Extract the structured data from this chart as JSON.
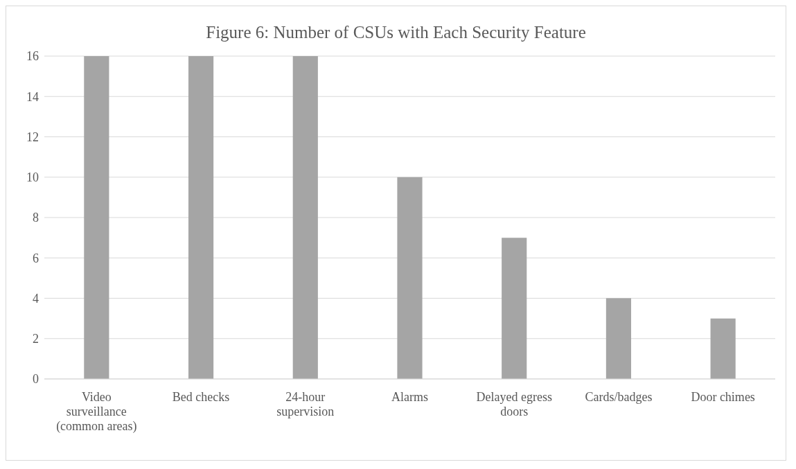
{
  "chart_data": {
    "type": "bar",
    "title": "Figure 6: Number of CSUs with Each Security Feature",
    "categories": [
      "Video surveillance (common areas)",
      "Bed checks",
      "24-hour supervision",
      "Alarms",
      "Delayed egress doors",
      "Cards/badges",
      "Door chimes"
    ],
    "values": [
      16,
      16,
      16,
      10,
      7,
      4,
      3
    ],
    "color": "#a5a5a5",
    "ylim": [
      0,
      16
    ],
    "yticks": [
      0,
      2,
      4,
      6,
      8,
      10,
      12,
      14,
      16
    ],
    "grid": "y"
  }
}
